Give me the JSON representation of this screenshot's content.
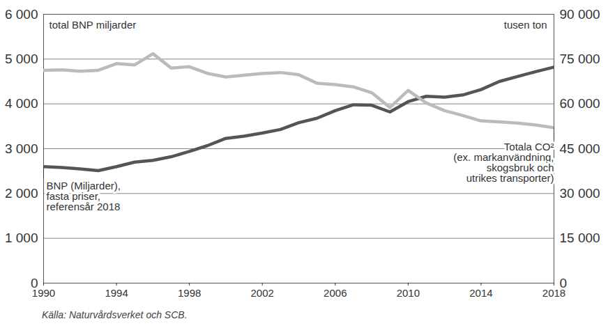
{
  "chart_data": {
    "type": "line",
    "caption": "Källa: Naturvårdsverket och SCB.",
    "ylabel": "total BNP miljarder",
    "y2label": "tusen ton",
    "x": [
      1990,
      1991,
      1992,
      1993,
      1994,
      1995,
      1996,
      1997,
      1998,
      1999,
      2000,
      2001,
      2002,
      2003,
      2004,
      2005,
      2006,
      2007,
      2008,
      2009,
      2010,
      2011,
      2012,
      2013,
      2014,
      2015,
      2016,
      2017,
      2018
    ],
    "xlim": [
      1990,
      2018
    ],
    "xticks": [
      1990,
      1994,
      1998,
      2002,
      2006,
      2010,
      2014,
      2018
    ],
    "ylim": [
      0,
      6000
    ],
    "yticks": [
      0,
      {
        "value": 1000,
        "label": "1 000"
      },
      {
        "value": 2000,
        "label": "2 000"
      },
      {
        "value": 3000,
        "label": "3 000"
      },
      {
        "value": 4000,
        "label": "4 000"
      },
      {
        "value": 5000,
        "label": "5 000"
      },
      {
        "value": 6000,
        "label": "6 000"
      }
    ],
    "y2lim": [
      0,
      90000
    ],
    "y2ticks": [
      0,
      {
        "value": 15000,
        "label": "15 000"
      },
      {
        "value": 30000,
        "label": "30 000"
      },
      {
        "value": 45000,
        "label": "45 000"
      },
      {
        "value": 60000,
        "label": "60 000"
      },
      {
        "value": 75000,
        "label": "75 000"
      },
      {
        "value": 90000,
        "label": "90 000"
      }
    ],
    "grid": true,
    "series": [
      {
        "name": "BNP (Miljarder),\nfasta priser,\nreferensår 2018",
        "color": "#555555",
        "values": [
          2600,
          2580,
          2550,
          2510,
          2600,
          2700,
          2740,
          2820,
          2940,
          3070,
          3230,
          3280,
          3350,
          3430,
          3580,
          3680,
          3850,
          3980,
          3970,
          3820,
          4050,
          4170,
          4150,
          4200,
          4320,
          4500,
          4610,
          4720,
          4820
        ]
      },
      {
        "name": "Totala CO²\n(ex. markanvändning,\nskogsbruk och\nutrikes transporter)",
        "color": "#bbbbbb",
        "axis": "y2",
        "values": [
          71250,
          71400,
          70950,
          71250,
          73500,
          73050,
          76800,
          72000,
          72450,
          70200,
          69000,
          69600,
          70200,
          70500,
          69750,
          66900,
          66450,
          65700,
          63750,
          58800,
          64500,
          60300,
          57750,
          56100,
          54300,
          54000,
          53550,
          52950,
          52050
        ]
      }
    ]
  }
}
